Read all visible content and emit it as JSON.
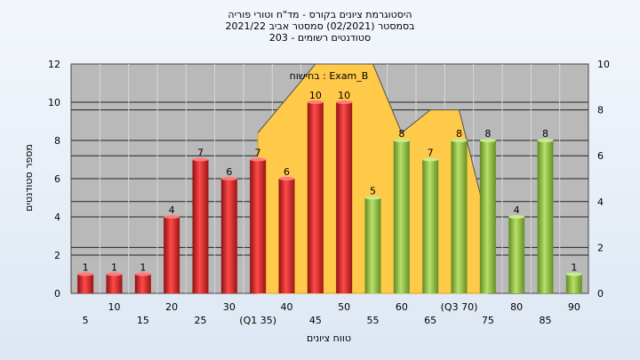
{
  "chart_data": {
    "type": "bar",
    "title_lines": [
      "היסטוגרמת ציונים בקורס - מד\"ח וטורי פוריה",
      "בסמסטר  (02/2021)  סמסטר אביב 2021/22",
      "סטודנטים רשומים - 203"
    ],
    "annotation": "בחישוח : Exam_B",
    "xlabel": "טווח ציונים",
    "ylabel": "מספר סטודנטים",
    "ylim": [
      0,
      12
    ],
    "y2lim": [
      0,
      10
    ],
    "yticks": [
      "0",
      "2",
      "4",
      "6",
      "8",
      "10",
      "12"
    ],
    "y2ticks": [
      "0",
      "2",
      "4",
      "6",
      "8",
      "10"
    ],
    "categories": [
      "5",
      "10",
      "15",
      "20",
      "25",
      "30",
      "(Q1 35)",
      "40",
      "45",
      "50",
      "55",
      "60",
      "65",
      "(Q3 70)",
      "75",
      "80",
      "85",
      "90"
    ],
    "values": [
      1,
      1,
      1,
      4,
      7,
      6,
      7,
      6,
      10,
      10,
      5,
      8,
      7,
      8,
      8,
      4,
      8,
      1
    ],
    "bar_colors": [
      "#d42a2a",
      "#d42a2a",
      "#d42a2a",
      "#d42a2a",
      "#d42a2a",
      "#d42a2a",
      "#d42a2a",
      "#d42a2a",
      "#d42a2a",
      "#d42a2a",
      "#8dbb3e",
      "#8dbb3e",
      "#8dbb3e",
      "#8dbb3e",
      "#8dbb3e",
      "#8dbb3e",
      "#8dbb3e",
      "#8dbb3e"
    ],
    "area_series": {
      "x": [
        "(Q1 35)",
        "45",
        "50",
        "55",
        "60",
        "65",
        "(Q3 70)",
        "75"
      ],
      "values": [
        7,
        10,
        10,
        10,
        7,
        8,
        8,
        3
      ]
    },
    "grid": true,
    "colors": {
      "red": "#d42a2a",
      "green": "#8dbb3e",
      "area": "#ffc94a",
      "plot_bg": "#b9b9b9"
    }
  }
}
